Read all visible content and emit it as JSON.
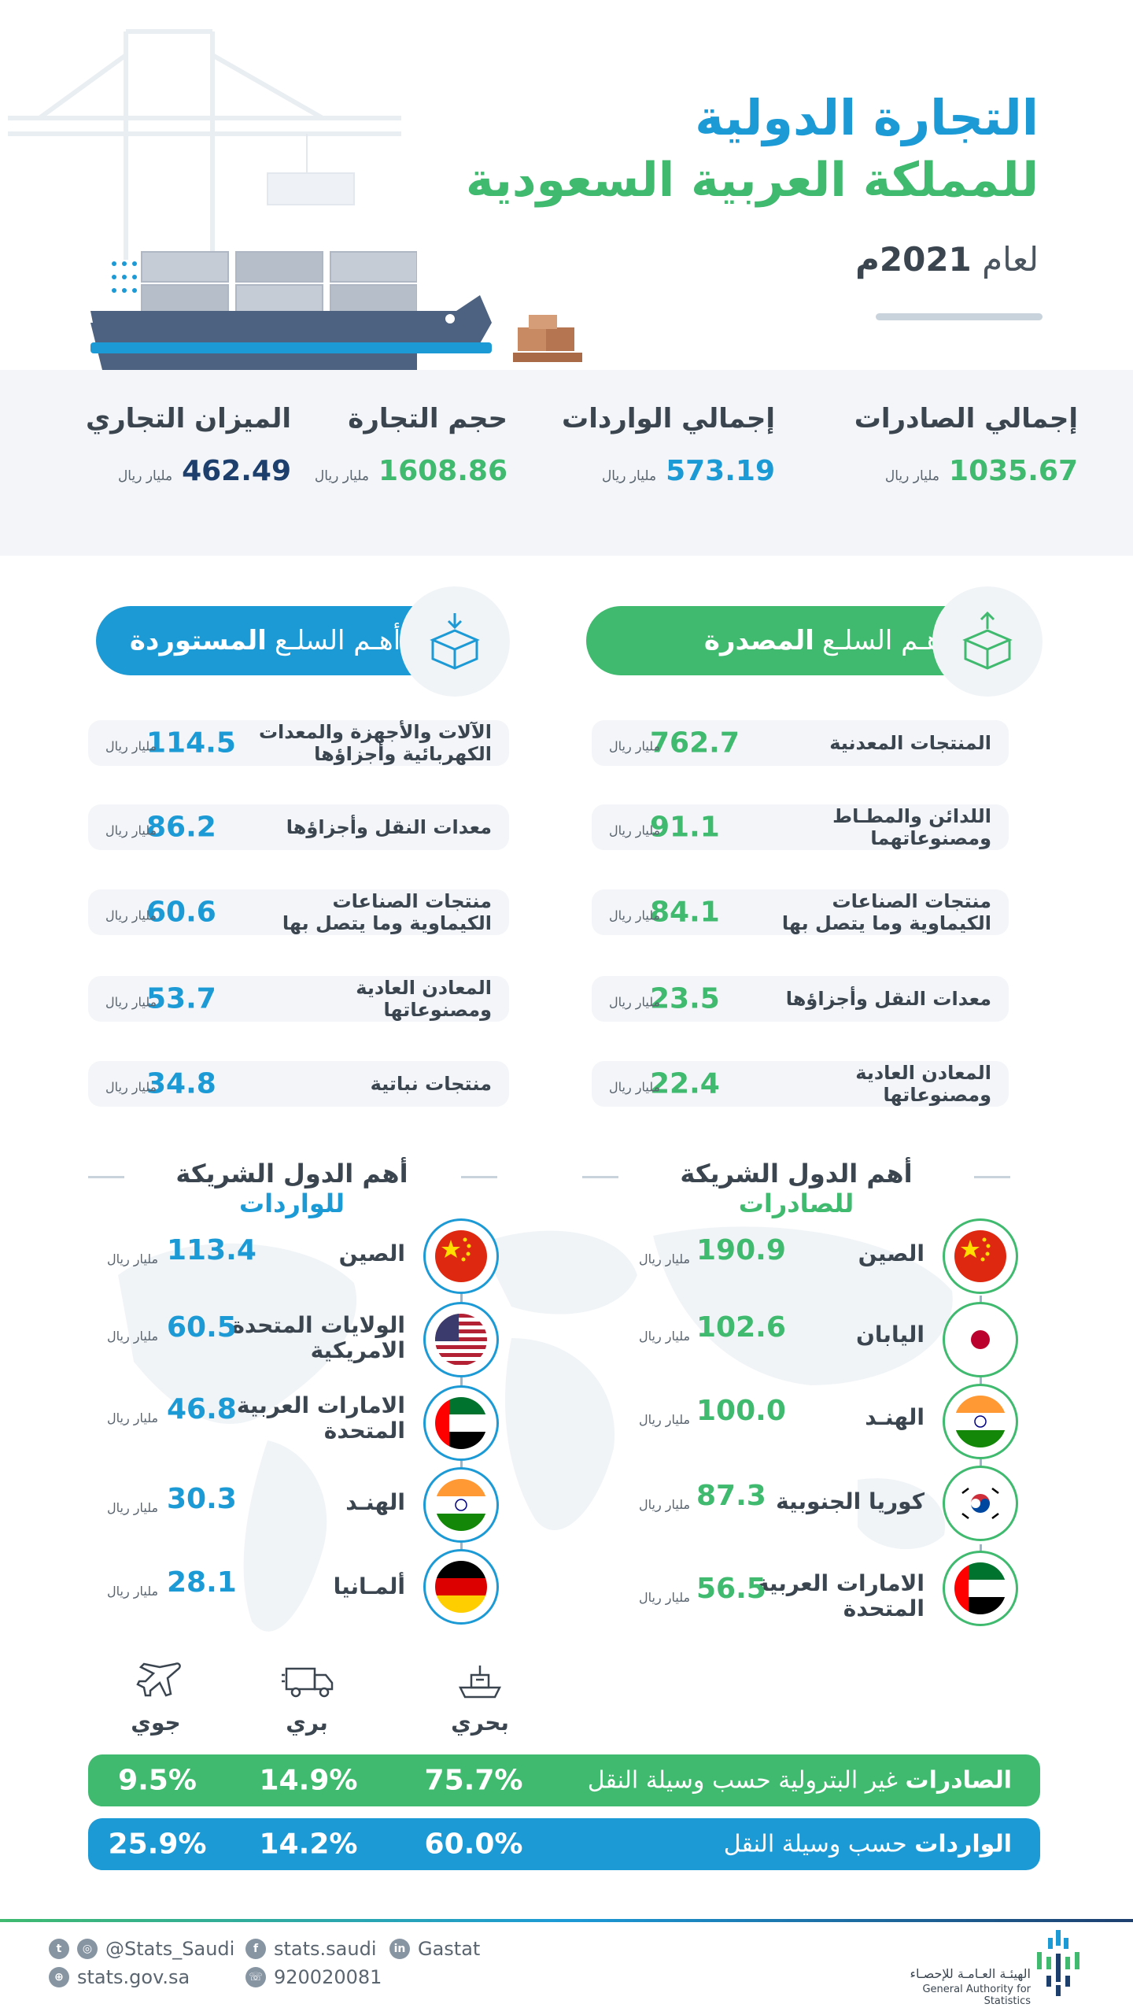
{
  "header": {
    "title_line1": "التجارة الدولية",
    "title_line2": "للمملكة العربية السعودية",
    "year_prefix": "لعام",
    "year_value": "2021م"
  },
  "totals": [
    {
      "label": "إجمالي الصادرات",
      "value": "1035.67",
      "unit": "مليار ريال",
      "color": "#3fba6f"
    },
    {
      "label": "إجمالي الواردات",
      "value": "573.19",
      "unit": "مليار ريال",
      "color": "#1c9ad6"
    },
    {
      "label": "حجم التجارة",
      "value": "1608.86",
      "unit": "مليار ريال",
      "color": "#3fba6f"
    },
    {
      "label": "الميزان التجاري",
      "value": "462.49",
      "unit": "مليار ريال",
      "color": "#1d3f6e"
    }
  ],
  "exports_commodities": {
    "title_prefix": "أهـم السلـع",
    "title_bold": "المصدرة",
    "icon": "export-box-icon",
    "items": [
      {
        "name": "المنتجات المعدنية",
        "value": "762.7",
        "unit": "مليار ريال"
      },
      {
        "name": "اللدائن والمطـاط ومصنوعاتهما",
        "value": "91.1",
        "unit": "مليار ريال"
      },
      {
        "name": "منتجات الصناعات الكيماوية وما يتصل بها",
        "value": "84.1",
        "unit": "مليار ريال"
      },
      {
        "name": "معدات النقل وأجزاؤها",
        "value": "23.5",
        "unit": "مليار ريال"
      },
      {
        "name": "المعادن العادية ومصنوعاتها",
        "value": "22.4",
        "unit": "مليار ريال"
      }
    ]
  },
  "imports_commodities": {
    "title_prefix": "أهـم السلـع",
    "title_bold": "المستوردة",
    "icon": "import-box-icon",
    "items": [
      {
        "name": "الآلات والأجهزة والمعدات الكهربائية وأجزاؤها",
        "value": "114.5",
        "unit": "مليار ريال"
      },
      {
        "name": "معدات النقل وأجزاؤها",
        "value": "86.2",
        "unit": "مليار ريال"
      },
      {
        "name": "منتجات الصناعات الكيماوية وما يتصل بها",
        "value": "60.6",
        "unit": "مليار ريال"
      },
      {
        "name": "المعادن العادية ومصنوعاتها",
        "value": "53.7",
        "unit": "مليار ريال"
      },
      {
        "name": "منتجات نباتية",
        "value": "34.8",
        "unit": "مليار ريال"
      }
    ]
  },
  "exports_partners": {
    "title_prefix": "أهم الدول الشريكة",
    "title_bold": "للصادرات",
    "items": [
      {
        "name": "الصين",
        "value": "190.9",
        "unit": "مليار ريال",
        "flag": "china-flag-icon"
      },
      {
        "name": "اليابان",
        "value": "102.6",
        "unit": "مليار ريال",
        "flag": "japan-flag-icon"
      },
      {
        "name": "الهنـد",
        "value": "100.0",
        "unit": "مليار ريال",
        "flag": "india-flag-icon"
      },
      {
        "name": "كوريا الجنوبية",
        "value": "87.3",
        "unit": "مليار ريال",
        "flag": "south-korea-flag-icon"
      },
      {
        "name": "الامارات العربية المتحدة",
        "value": "56.5",
        "unit": "مليار ريال",
        "flag": "uae-flag-icon"
      }
    ]
  },
  "imports_partners": {
    "title_prefix": "أهم الدول الشريكة",
    "title_bold": "للواردات",
    "items": [
      {
        "name": "الصين",
        "value": "113.4",
        "unit": "مليار ريال",
        "flag": "china-flag-icon"
      },
      {
        "name": "الولايات المتحدة الامريكية",
        "value": "60.5",
        "unit": "مليار ريال",
        "flag": "usa-flag-icon"
      },
      {
        "name": "الامارات العربية المتحدة",
        "value": "46.8",
        "unit": "مليار ريال",
        "flag": "uae-flag-icon"
      },
      {
        "name": "الهنـد",
        "value": "30.3",
        "unit": "مليار ريال",
        "flag": "india-flag-icon"
      },
      {
        "name": "ألمـانيا",
        "value": "28.1",
        "unit": "مليار ريال",
        "flag": "germany-flag-icon"
      }
    ]
  },
  "transport": {
    "modes": [
      {
        "label": "بحري",
        "icon": "ship-icon"
      },
      {
        "label": "بري",
        "icon": "truck-icon"
      },
      {
        "label": "جوي",
        "icon": "plane-icon"
      }
    ],
    "exports_bar": {
      "bold": "الصادرات",
      "rest": "غير البترولية حسب وسيلة النقل",
      "sea": "75.7%",
      "land": "14.9%",
      "air": "9.5%",
      "color": "#3fba6f"
    },
    "imports_bar": {
      "bold": "الواردات",
      "rest": "حسب وسيلة النقل",
      "sea": "60.0%",
      "land": "14.2%",
      "air": "25.9%",
      "color": "#1c9ad6"
    }
  },
  "footer": {
    "twitter_instagram": "@Stats_Saudi",
    "facebook": "stats.saudi",
    "linkedin": "Gastat",
    "website": "stats.gov.sa",
    "phone": "920020081",
    "org_ar": "الهيئـة العـامـة للإحصـاء",
    "org_en": "General Authority for Statistics"
  }
}
